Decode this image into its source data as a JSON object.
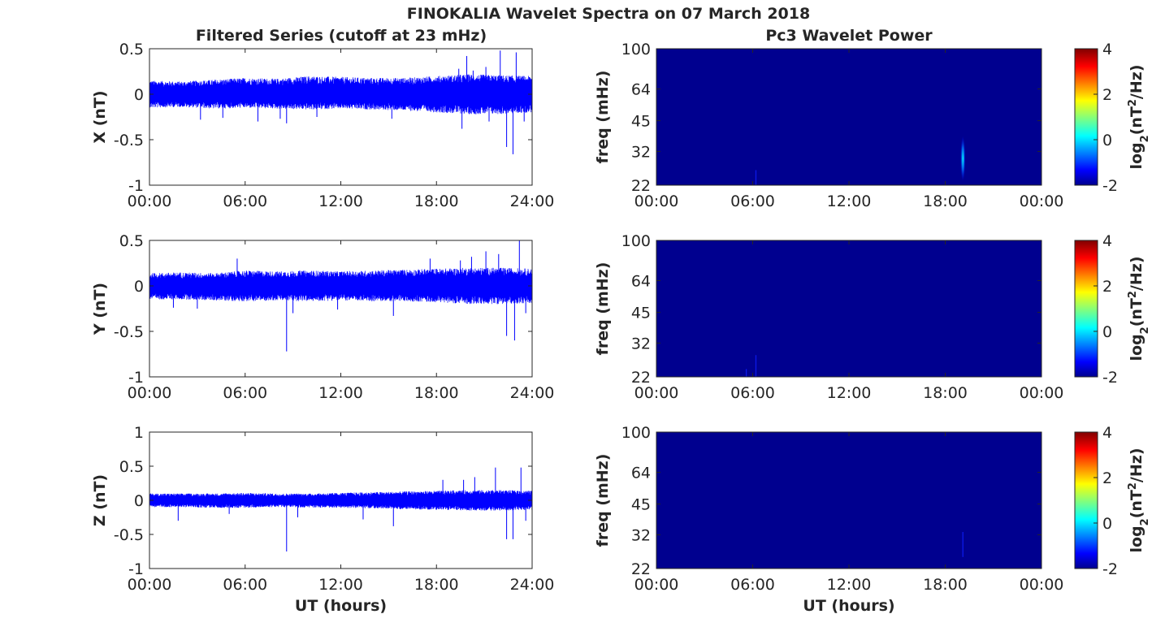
{
  "figure": {
    "title": "FINOKALIA Wavelet Spectra on 07 March 2018",
    "left_column_title": "Filtered Series (cutoff at 23 mHz)",
    "right_column_title": "Pc3 Wavelet Power"
  },
  "chart_data": [
    {
      "type": "line",
      "name": "X filtered series",
      "ylabel": "X (nT)",
      "xlabel": "",
      "xlim": [
        0,
        24
      ],
      "ylim": [
        -1,
        0.5
      ],
      "xtick_labels": [
        "00:00",
        "06:00",
        "12:00",
        "18:00",
        "24:00"
      ],
      "ytick_values": [
        -1,
        -0.5,
        0,
        0.5
      ],
      "ytick_labels": [
        "-1",
        "-0.5",
        "0",
        "0.5"
      ],
      "series_color": "#0000ff",
      "envelope": {
        "x": [
          0,
          2,
          4,
          6,
          8,
          10,
          12,
          14,
          16,
          18,
          20,
          22,
          24
        ],
        "upper": [
          0.15,
          0.14,
          0.16,
          0.18,
          0.17,
          0.2,
          0.19,
          0.18,
          0.18,
          0.2,
          0.22,
          0.21,
          0.2
        ],
        "lower": [
          -0.15,
          -0.14,
          -0.16,
          -0.15,
          -0.16,
          -0.17,
          -0.16,
          -0.17,
          -0.18,
          -0.2,
          -0.22,
          -0.22,
          -0.2
        ]
      },
      "spikes": [
        {
          "x": 3.2,
          "y": -0.28
        },
        {
          "x": 4.6,
          "y": -0.26
        },
        {
          "x": 6.8,
          "y": -0.3
        },
        {
          "x": 8.2,
          "y": -0.27
        },
        {
          "x": 8.6,
          "y": -0.32
        },
        {
          "x": 10.5,
          "y": -0.25
        },
        {
          "x": 15.2,
          "y": -0.27
        },
        {
          "x": 19.4,
          "y": 0.28
        },
        {
          "x": 19.6,
          "y": -0.38
        },
        {
          "x": 19.9,
          "y": 0.42
        },
        {
          "x": 20.3,
          "y": 0.26
        },
        {
          "x": 21.1,
          "y": 0.3
        },
        {
          "x": 21.3,
          "y": -0.3
        },
        {
          "x": 22.0,
          "y": 0.48
        },
        {
          "x": 22.4,
          "y": -0.58
        },
        {
          "x": 22.8,
          "y": -0.66
        },
        {
          "x": 23.0,
          "y": 0.46
        },
        {
          "x": 23.5,
          "y": -0.3
        }
      ]
    },
    {
      "type": "line",
      "name": "Y filtered series",
      "ylabel": "Y (nT)",
      "xlabel": "",
      "xlim": [
        0,
        24
      ],
      "ylim": [
        -1,
        0.5
      ],
      "xtick_labels": [
        "00:00",
        "06:00",
        "12:00",
        "18:00",
        "24:00"
      ],
      "ytick_values": [
        -1,
        -0.5,
        0,
        0.5
      ],
      "ytick_labels": [
        "-1",
        "-0.5",
        "0",
        "0.5"
      ],
      "series_color": "#0000ff",
      "envelope": {
        "x": [
          0,
          2,
          4,
          6,
          8,
          10,
          12,
          14,
          16,
          18,
          20,
          22,
          24
        ],
        "upper": [
          0.14,
          0.15,
          0.14,
          0.17,
          0.16,
          0.17,
          0.16,
          0.17,
          0.18,
          0.19,
          0.2,
          0.2,
          0.19
        ],
        "lower": [
          -0.15,
          -0.15,
          -0.16,
          -0.17,
          -0.16,
          -0.17,
          -0.16,
          -0.17,
          -0.17,
          -0.18,
          -0.2,
          -0.2,
          -0.19
        ]
      },
      "spikes": [
        {
          "x": 1.5,
          "y": -0.24
        },
        {
          "x": 3.0,
          "y": -0.25
        },
        {
          "x": 5.5,
          "y": 0.3
        },
        {
          "x": 8.6,
          "y": -0.72
        },
        {
          "x": 9.0,
          "y": -0.3
        },
        {
          "x": 11.8,
          "y": -0.26
        },
        {
          "x": 15.3,
          "y": -0.33
        },
        {
          "x": 17.6,
          "y": 0.3
        },
        {
          "x": 19.5,
          "y": 0.28
        },
        {
          "x": 20.2,
          "y": 0.32
        },
        {
          "x": 21.1,
          "y": 0.38
        },
        {
          "x": 21.9,
          "y": 0.35
        },
        {
          "x": 22.4,
          "y": -0.55
        },
        {
          "x": 22.9,
          "y": -0.6
        },
        {
          "x": 23.2,
          "y": 0.5
        },
        {
          "x": 23.6,
          "y": -0.3
        }
      ]
    },
    {
      "type": "line",
      "name": "Z filtered series",
      "ylabel": "Z (nT)",
      "xlabel": "UT (hours)",
      "xlim": [
        0,
        24
      ],
      "ylim": [
        -1,
        1
      ],
      "xtick_labels": [
        "00:00",
        "06:00",
        "12:00",
        "18:00",
        "24:00"
      ],
      "ytick_values": [
        -1,
        -0.5,
        0,
        0.5,
        1
      ],
      "ytick_labels": [
        "-1",
        "-0.5",
        "0",
        "0.5",
        "1"
      ],
      "series_color": "#0000ff",
      "envelope": {
        "x": [
          0,
          2,
          4,
          6,
          8,
          10,
          12,
          14,
          16,
          18,
          20,
          22,
          24
        ],
        "upper": [
          0.1,
          0.1,
          0.1,
          0.11,
          0.1,
          0.1,
          0.11,
          0.12,
          0.13,
          0.14,
          0.15,
          0.15,
          0.14
        ],
        "lower": [
          -0.1,
          -0.1,
          -0.11,
          -0.11,
          -0.1,
          -0.11,
          -0.11,
          -0.12,
          -0.13,
          -0.14,
          -0.15,
          -0.15,
          -0.14
        ]
      },
      "spikes": [
        {
          "x": 1.8,
          "y": -0.3
        },
        {
          "x": 5.0,
          "y": -0.2
        },
        {
          "x": 8.6,
          "y": -0.75
        },
        {
          "x": 9.3,
          "y": -0.25
        },
        {
          "x": 13.4,
          "y": -0.28
        },
        {
          "x": 15.3,
          "y": -0.38
        },
        {
          "x": 18.4,
          "y": 0.3
        },
        {
          "x": 19.7,
          "y": 0.3
        },
        {
          "x": 20.4,
          "y": 0.34
        },
        {
          "x": 21.7,
          "y": 0.48
        },
        {
          "x": 22.4,
          "y": -0.57
        },
        {
          "x": 22.8,
          "y": -0.57
        },
        {
          "x": 23.3,
          "y": 0.48
        },
        {
          "x": 23.6,
          "y": -0.3
        }
      ]
    },
    {
      "type": "heatmap",
      "name": "X Pc3 wavelet power",
      "ylabel": "freq (mHz)",
      "xlabel": "",
      "xlim": [
        0,
        24
      ],
      "ylim": [
        22,
        100
      ],
      "xtick_labels": [
        "00:00",
        "06:00",
        "12:00",
        "18:00",
        "00:00"
      ],
      "ytick_values": [
        22,
        32,
        45,
        64,
        100
      ],
      "ytick_labels": [
        "22",
        "32",
        "45",
        "64",
        "100"
      ],
      "background_color": "#00008f",
      "features": [
        {
          "x": 19.1,
          "freq_low": 23,
          "freq_high": 38,
          "level": 0.0
        },
        {
          "x": 6.2,
          "freq_low": 22,
          "freq_high": 26,
          "level": -1.7
        }
      ],
      "colorbar": {
        "label": "log2(nT2/Hz)",
        "label_base": "log",
        "label_sub": "2",
        "label_mid": "(nT",
        "label_sup": "2",
        "label_tail": "/Hz)",
        "range": [
          -2,
          4
        ],
        "ticks": [
          "-2",
          "0",
          "2",
          "4"
        ]
      }
    },
    {
      "type": "heatmap",
      "name": "Y Pc3 wavelet power",
      "ylabel": "freq (mHz)",
      "xlabel": "",
      "xlim": [
        0,
        24
      ],
      "ylim": [
        22,
        100
      ],
      "xtick_labels": [
        "00:00",
        "06:00",
        "12:00",
        "18:00",
        "00:00"
      ],
      "ytick_values": [
        22,
        32,
        45,
        64,
        100
      ],
      "ytick_labels": [
        "22",
        "32",
        "45",
        "64",
        "100"
      ],
      "background_color": "#00008f",
      "features": [
        {
          "x": 6.2,
          "freq_low": 22,
          "freq_high": 28,
          "level": -1.6
        },
        {
          "x": 5.6,
          "freq_low": 22,
          "freq_high": 24,
          "level": -1.8
        }
      ],
      "colorbar": {
        "label": "log2(nT2/Hz)",
        "label_base": "log",
        "label_sub": "2",
        "label_mid": "(nT",
        "label_sup": "2",
        "label_tail": "/Hz)",
        "range": [
          -2,
          4
        ],
        "ticks": [
          "-2",
          "0",
          "2",
          "4"
        ]
      }
    },
    {
      "type": "heatmap",
      "name": "Z Pc3 wavelet power",
      "ylabel": "freq (mHz)",
      "xlabel": "UT (hours)",
      "xlim": [
        0,
        24
      ],
      "ylim": [
        22,
        100
      ],
      "xtick_labels": [
        "00:00",
        "06:00",
        "12:00",
        "18:00",
        "00:00"
      ],
      "ytick_values": [
        22,
        32,
        45,
        64,
        100
      ],
      "ytick_labels": [
        "22",
        "32",
        "45",
        "64",
        "100"
      ],
      "background_color": "#00008f",
      "features": [
        {
          "x": 19.1,
          "freq_low": 25,
          "freq_high": 33,
          "level": -1.2
        }
      ],
      "colorbar": {
        "label": "log2(nT2/Hz)",
        "label_base": "log",
        "label_sub": "2",
        "label_mid": "(nT",
        "label_sup": "2",
        "label_tail": "/Hz)",
        "range": [
          -2,
          4
        ],
        "ticks": [
          "-2",
          "0",
          "2",
          "4"
        ]
      }
    }
  ]
}
